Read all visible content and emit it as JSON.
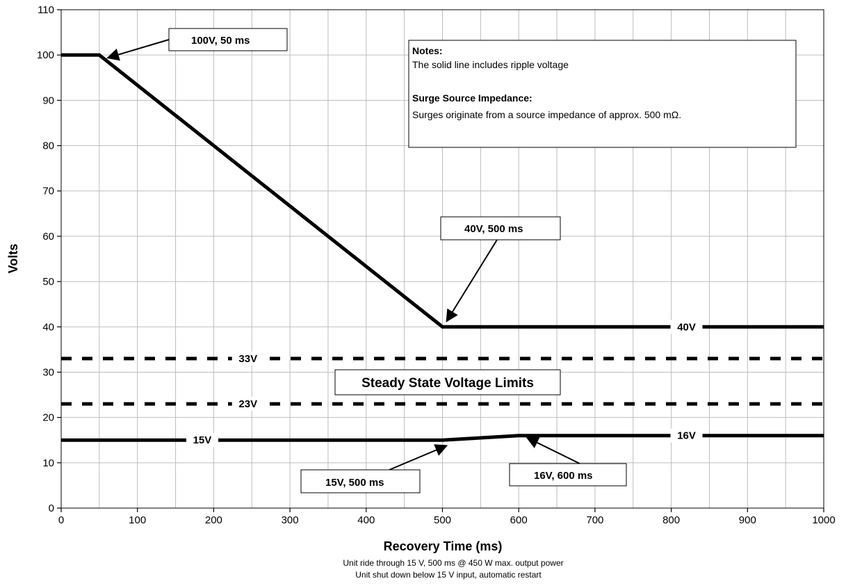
{
  "chart_data": {
    "type": "line",
    "title": "",
    "xlabel": "Recovery Time (ms)",
    "ylabel": "Volts",
    "xlim": [
      0,
      1000
    ],
    "ylim": [
      0,
      110
    ],
    "x_ticks": [
      0,
      100,
      200,
      300,
      400,
      500,
      600,
      700,
      800,
      900,
      1000
    ],
    "x_tick_labels": [
      "0",
      "100",
      "200",
      "300",
      "400",
      "500",
      "600",
      "700",
      "800",
      "900",
      "1000"
    ],
    "y_ticks": [
      0,
      10,
      20,
      30,
      40,
      50,
      60,
      70,
      80,
      90,
      100,
      110
    ],
    "y_tick_labels": [
      "0",
      "10",
      "20",
      "30",
      "40",
      "50",
      "60",
      "70",
      "80",
      "90",
      "100",
      "110"
    ],
    "grid": true,
    "series": [
      {
        "style": "solid",
        "x": [
          0,
          50,
          500,
          1000
        ],
        "y": [
          100,
          100,
          40,
          40
        ],
        "inline_label": {
          "text": "40V",
          "x": 820,
          "y": 40
        }
      },
      {
        "style": "solid",
        "x": [
          0,
          500,
          600,
          1000
        ],
        "y": [
          15,
          15,
          16,
          16
        ],
        "inline_labels": [
          {
            "text": "15V",
            "x": 185,
            "y": 15
          },
          {
            "text": "16V",
            "x": 820,
            "y": 16
          }
        ]
      },
      {
        "style": "dashed",
        "x": [
          0,
          1000
        ],
        "y": [
          33,
          33
        ],
        "inline_label": {
          "text": "33V",
          "x": 245,
          "y": 33
        }
      },
      {
        "style": "dashed",
        "x": [
          0,
          1000
        ],
        "y": [
          23,
          23
        ],
        "inline_label": {
          "text": "23V",
          "x": 245,
          "y": 23
        }
      }
    ],
    "callouts": [
      {
        "text": "100V, 50 ms",
        "point_x": 50,
        "point_y": 100
      },
      {
        "text": "40V, 500 ms",
        "point_x": 500,
        "point_y": 40
      },
      {
        "text": "15V, 500 ms",
        "point_x": 500,
        "point_y": 15
      },
      {
        "text": "16V, 600 ms",
        "point_x": 600,
        "point_y": 16
      }
    ],
    "band_label": "Steady State Voltage Limits",
    "notes": {
      "heading1": "Notes:",
      "line1": "The solid line includes ripple voltage",
      "heading2": "Surge Source Impedance:",
      "line2": "Surges originate from a source impedance of approx. 500 mΩ."
    },
    "footnotes": [
      "Unit ride through 15 V, 500 ms @ 450 W max. output power",
      "Unit shut down below 15 V input, automatic restart"
    ],
    "colors": {
      "line": "#000000",
      "grid": "#bdbdbd",
      "background": "#ffffff"
    }
  }
}
